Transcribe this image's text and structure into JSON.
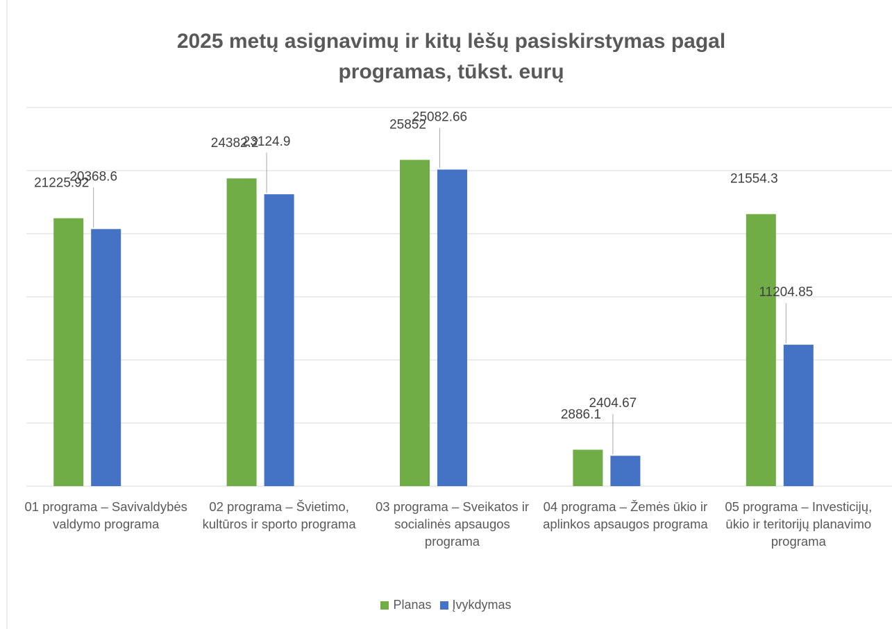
{
  "chart_data": {
    "type": "bar",
    "title": "2025 metų asignavimų ir kitų lėšų pasiskirstymas pagal programas, tūkst. eurų",
    "categories": [
      "01 programa – Savivaldybės valdymo programa",
      "02 programa – Švietimo, kultūros ir sporto programa",
      "03 programa – Sveikatos ir socialinės apsaugos programa",
      "04 programa – Žemės ūkio ir aplinkos apsaugos programa",
      "05 programa – Investicijų, ūkio ir teritorijų planavimo programa"
    ],
    "series": [
      {
        "name": "Planas",
        "color": "#70ad47",
        "values": [
          21225.92,
          24382.2,
          25852,
          2886.1,
          21554.3
        ]
      },
      {
        "name": "Įvykdymas",
        "color": "#4472c4",
        "values": [
          20368.6,
          23124.9,
          25082.66,
          2404.67,
          11204.85
        ]
      }
    ],
    "ylim": [
      0,
      30000
    ],
    "yticks": [
      0,
      5000,
      10000,
      15000,
      20000,
      25000,
      30000
    ],
    "grid": true,
    "legend": "bottom"
  }
}
